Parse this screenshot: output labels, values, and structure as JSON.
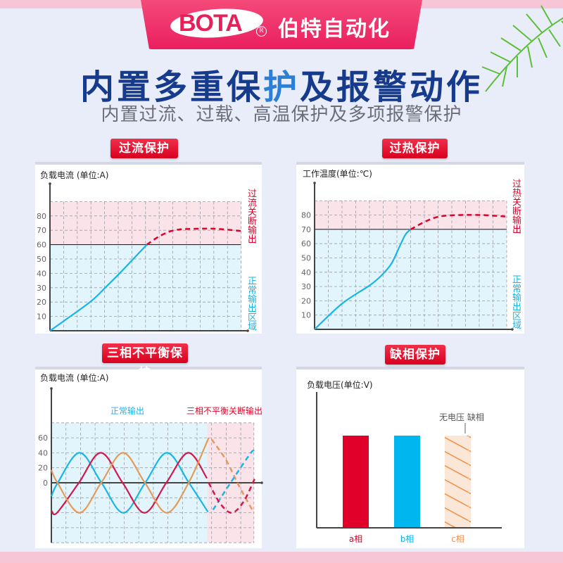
{
  "header": {
    "logo": "BOTA",
    "registered": "R",
    "brand": "伯特自动化",
    "title_a": "内置多重保",
    "title_hl": "护",
    "title_b": "及报警动作",
    "subtitle": "内置过流、过载、高温保护及多项报警保护"
  },
  "colors": {
    "accent_red": "#e0002a",
    "cyan": "#1ab4e6",
    "orange": "#e49a5a",
    "crimson": "#d2184a",
    "title_blue": "#163a8c",
    "safe_zone": "#e2f5fc",
    "trip_zone": "#fbe3ea"
  },
  "chart_data": [
    {
      "type": "line",
      "tag": "过流保护",
      "ylabel": "负载电流  (单位:A)",
      "yticks": [
        10,
        20,
        30,
        40,
        50,
        60,
        70,
        80
      ],
      "ylim": [
        0,
        90
      ],
      "threshold": 60,
      "grid": true,
      "zone_above": "过流关断输出",
      "zone_below": "正常输出区域",
      "series": [
        {
          "style": "solid",
          "color": "#1ab4e6",
          "points": [
            [
              0,
              0
            ],
            [
              1,
              6.7
            ],
            [
              3,
              20.5
            ],
            [
              4.1,
              30.5
            ],
            [
              5.05,
              39.5
            ],
            [
              6.1,
              50
            ],
            [
              7.1,
              60
            ]
          ]
        },
        {
          "style": "dashed",
          "color": "#e0002a",
          "points": [
            [
              7.1,
              60
            ],
            [
              8.05,
              66
            ],
            [
              9.1,
              70
            ],
            [
              10.5,
              71
            ],
            [
              12.2,
              71
            ],
            [
              14,
              69.5
            ]
          ]
        }
      ]
    },
    {
      "type": "line",
      "tag": "过热保护",
      "ylabel": "工作温度(单位:℃)",
      "yticks": [
        10,
        20,
        30,
        40,
        50,
        60,
        70,
        80
      ],
      "ylim": [
        0,
        90
      ],
      "threshold": 70,
      "grid": true,
      "zone_above": "过热关断输出",
      "zone_below": "正常输出区域",
      "series": [
        {
          "style": "solid",
          "color": "#1ab4e6",
          "points": [
            [
              0,
              0
            ],
            [
              2,
              18
            ],
            [
              4.05,
              31
            ],
            [
              4.9,
              38
            ],
            [
              5.6,
              46
            ],
            [
              6.1,
              56
            ],
            [
              6.6,
              66
            ],
            [
              7,
              70
            ]
          ]
        },
        {
          "style": "dashed",
          "color": "#e0002a",
          "points": [
            [
              7,
              70
            ],
            [
              8.1,
              75.6
            ],
            [
              9.1,
              79
            ],
            [
              10.5,
              80
            ],
            [
              12.2,
              80
            ],
            [
              13.9,
              79
            ]
          ]
        }
      ]
    },
    {
      "type": "line",
      "tag": "三相不平衡保护",
      "ylabel": "负载电流 (单位:A)",
      "yticks": [
        0,
        20,
        40,
        60
      ],
      "ylim": [
        -80,
        80
      ],
      "grid": true,
      "zone_normal": "正常输出",
      "zone_trip": "三相不平衡关断输出",
      "series": [
        {
          "style": "solid",
          "color": "#1ab4e6",
          "points": [
            [
              0,
              -18
            ],
            [
              0.44,
              0
            ],
            [
              1.94,
              40
            ],
            [
              3.44,
              0
            ],
            [
              4.94,
              -40
            ],
            [
              6.44,
              0
            ],
            [
              7.94,
              40
            ],
            [
              9.44,
              0
            ],
            [
              10.75,
              -39
            ]
          ]
        },
        {
          "style": "solid",
          "color": "#d2184a",
          "points": [
            [
              0,
              -37
            ],
            [
              0.39,
              -40
            ],
            [
              1.89,
              0
            ],
            [
              3.39,
              40
            ],
            [
              4.89,
              0
            ],
            [
              6.39,
              -40
            ],
            [
              7.89,
              0
            ],
            [
              9.39,
              40
            ],
            [
              10.68,
              6
            ]
          ]
        },
        {
          "style": "solid",
          "color": "#e49a5a",
          "points": [
            [
              0,
              17
            ],
            [
              0.42,
              0
            ],
            [
              1.92,
              -40
            ],
            [
              3.42,
              0
            ],
            [
              4.92,
              40
            ],
            [
              6.42,
              0
            ],
            [
              7.92,
              -40
            ],
            [
              9.42,
              0
            ],
            [
              10.8,
              60
            ]
          ]
        },
        {
          "style": "dashed",
          "color": "#e49a5a",
          "points": [
            [
              11,
              58
            ],
            [
              12,
              30
            ],
            [
              12.9,
              -5
            ],
            [
              13.9,
              -40
            ]
          ]
        },
        {
          "style": "dashed",
          "color": "#1ab4e6",
          "points": [
            [
              11.1,
              -36
            ],
            [
              12.3,
              0
            ],
            [
              13.7,
              40
            ],
            [
              13.9,
              40
            ]
          ]
        },
        {
          "style": "dashed",
          "color": "#d2184a",
          "points": [
            [
              10.8,
              0
            ],
            [
              11.6,
              -28
            ],
            [
              12.4,
              -40
            ],
            [
              13.2,
              -25
            ],
            [
              13.95,
              5
            ]
          ]
        }
      ]
    },
    {
      "type": "bar",
      "tag": "缺相保护",
      "ylabel": "负载电压(单位:V)",
      "categories": [
        "a相",
        "b相",
        "c相"
      ],
      "values": [
        1,
        1,
        0
      ],
      "colors": [
        "#e0002a",
        "#00b6ee",
        "#f0924a"
      ],
      "missing": [
        false,
        false,
        true
      ],
      "annotation": "无电压 缺相"
    }
  ]
}
